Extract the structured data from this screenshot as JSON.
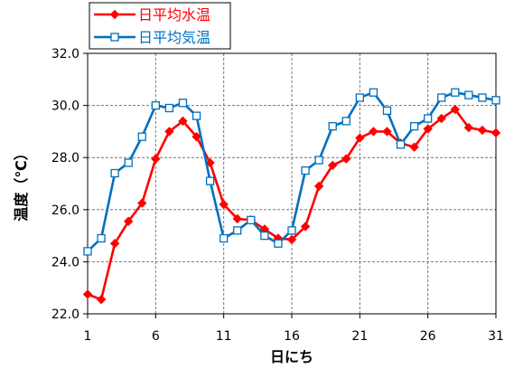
{
  "chart_data": {
    "type": "line",
    "xlabel": "日にち",
    "ylabel": "温度（℃）",
    "xlim": [
      1,
      31
    ],
    "ylim": [
      22.0,
      32.0
    ],
    "x_ticks": [
      1,
      6,
      11,
      16,
      21,
      26,
      31
    ],
    "y_ticks": [
      "22.0",
      "24.0",
      "26.0",
      "28.0",
      "30.0",
      "32.0"
    ],
    "grid": true,
    "legend_position": "top-left",
    "x": [
      1,
      2,
      3,
      4,
      5,
      6,
      7,
      8,
      9,
      10,
      11,
      12,
      13,
      14,
      15,
      16,
      17,
      18,
      19,
      20,
      21,
      22,
      23,
      24,
      25,
      26,
      27,
      28,
      29,
      30,
      31
    ],
    "series": [
      {
        "name": "日平均水温",
        "color": "#ff0000",
        "marker": "filled-diamond",
        "values": [
          22.75,
          22.55,
          24.7,
          25.55,
          26.25,
          27.95,
          29.0,
          29.4,
          28.8,
          27.8,
          26.2,
          25.65,
          25.6,
          25.25,
          24.9,
          24.85,
          25.35,
          26.9,
          27.7,
          27.95,
          28.75,
          29.0,
          29.0,
          28.55,
          28.4,
          29.1,
          29.5,
          29.85,
          29.15,
          29.05,
          28.95
        ]
      },
      {
        "name": "日平均気温",
        "color": "#0070c0",
        "marker": "open-square",
        "values": [
          24.4,
          24.9,
          27.4,
          27.8,
          28.8,
          30.0,
          29.9,
          30.1,
          29.6,
          27.1,
          24.9,
          25.2,
          25.6,
          25.0,
          24.7,
          25.2,
          27.5,
          27.9,
          29.2,
          29.4,
          30.3,
          30.5,
          29.8,
          28.5,
          29.2,
          29.5,
          30.3,
          30.5,
          30.4,
          30.3,
          30.2
        ]
      }
    ]
  }
}
